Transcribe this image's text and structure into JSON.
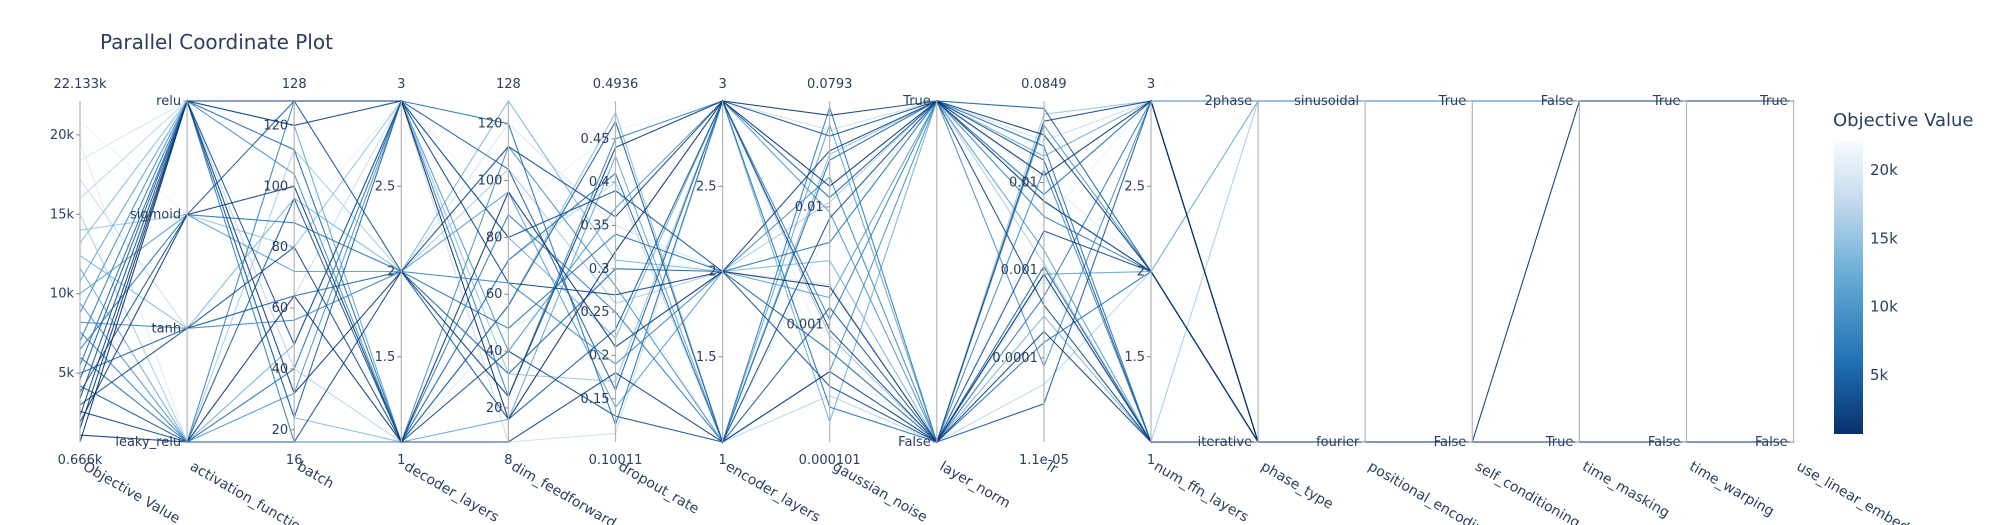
{
  "chart_data": {
    "type": "parallel_coordinates",
    "title": "Parallel Coordinate Plot",
    "colorbar": {
      "title": "Objective Value",
      "ticks": [
        "20k",
        "15k",
        "10k",
        "5k"
      ],
      "tick_values": [
        20000,
        15000,
        10000,
        5000
      ],
      "min": 666,
      "max": 22133,
      "colorscale": [
        "#08306b",
        "#2171b5",
        "#6baed6",
        "#c6dbef",
        "#f7fbff"
      ]
    },
    "axes": [
      {
        "key": "objective",
        "label": "Objective Value",
        "kind": "linear",
        "range": [
          666,
          22133
        ],
        "range_labels": [
          "22.133k",
          "0.666k"
        ],
        "ticks": [
          {
            "v": 5000,
            "t": "5k"
          },
          {
            "v": 10000,
            "t": "10k"
          },
          {
            "v": 15000,
            "t": "15k"
          },
          {
            "v": 20000,
            "t": "20k"
          }
        ]
      },
      {
        "key": "activation",
        "label": "activation_function",
        "kind": "categorical",
        "categories": [
          "leaky_relu",
          "tanh",
          "sigmoid",
          "relu"
        ]
      },
      {
        "key": "batch",
        "label": "batch",
        "kind": "linear",
        "range": [
          16,
          128
        ],
        "range_labels": [
          "128",
          "16"
        ],
        "ticks": [
          {
            "v": 20,
            "t": "20"
          },
          {
            "v": 40,
            "t": "40"
          },
          {
            "v": 60,
            "t": "60"
          },
          {
            "v": 80,
            "t": "80"
          },
          {
            "v": 100,
            "t": "100"
          },
          {
            "v": 120,
            "t": "120"
          }
        ]
      },
      {
        "key": "decoder_layers",
        "label": "decoder_layers",
        "kind": "linear",
        "range": [
          1,
          3
        ],
        "range_labels": [
          "3",
          "1"
        ],
        "ticks": [
          {
            "v": 1.5,
            "t": "1.5"
          },
          {
            "v": 2,
            "t": "2"
          },
          {
            "v": 2.5,
            "t": "2.5"
          }
        ]
      },
      {
        "key": "dim_feedforward",
        "label": "dim_feedforward",
        "kind": "linear",
        "range": [
          8,
          128
        ],
        "range_labels": [
          "128",
          "8"
        ],
        "ticks": [
          {
            "v": 20,
            "t": "20"
          },
          {
            "v": 40,
            "t": "40"
          },
          {
            "v": 60,
            "t": "60"
          },
          {
            "v": 80,
            "t": "80"
          },
          {
            "v": 100,
            "t": "100"
          },
          {
            "v": 120,
            "t": "120"
          }
        ]
      },
      {
        "key": "dropout_rate",
        "label": "dropout_rate",
        "kind": "linear",
        "range": [
          0.10011,
          0.4936
        ],
        "range_labels": [
          "0.4936",
          "0.10011"
        ],
        "ticks": [
          {
            "v": 0.15,
            "t": "0.15"
          },
          {
            "v": 0.2,
            "t": "0.2"
          },
          {
            "v": 0.25,
            "t": "0.25"
          },
          {
            "v": 0.3,
            "t": "0.3"
          },
          {
            "v": 0.35,
            "t": "0.35"
          },
          {
            "v": 0.4,
            "t": "0.4"
          },
          {
            "v": 0.45,
            "t": "0.45"
          }
        ]
      },
      {
        "key": "encoder_layers",
        "label": "encoder_layers",
        "kind": "linear",
        "range": [
          1,
          3
        ],
        "range_labels": [
          "3",
          "1"
        ],
        "ticks": [
          {
            "v": 1.5,
            "t": "1.5"
          },
          {
            "v": 2,
            "t": "2"
          },
          {
            "v": 2.5,
            "t": "2.5"
          }
        ]
      },
      {
        "key": "gaussian_noise",
        "label": "gaussian_noise",
        "kind": "log",
        "range": [
          0.000101,
          0.0793
        ],
        "range_labels": [
          "0.0793",
          "0.000101"
        ],
        "ticks": [
          {
            "v": 0.001,
            "t": "0.001"
          },
          {
            "v": 0.01,
            "t": "0.01"
          }
        ]
      },
      {
        "key": "layer_norm",
        "label": "layer_norm",
        "kind": "categorical",
        "categories": [
          "False",
          "True"
        ]
      },
      {
        "key": "lr",
        "label": "lr",
        "kind": "log",
        "range": [
          1.1e-05,
          0.0849
        ],
        "range_labels": [
          "0.0849",
          "1.1e-05"
        ],
        "ticks": [
          {
            "v": 0.0001,
            "t": "0.0001"
          },
          {
            "v": 0.001,
            "t": "0.001"
          },
          {
            "v": 0.01,
            "t": "0.01"
          }
        ]
      },
      {
        "key": "num_ffn_layers",
        "label": "num_ffn_layers",
        "kind": "linear",
        "range": [
          1,
          3
        ],
        "range_labels": [
          "3",
          "1"
        ],
        "ticks": [
          {
            "v": 1.5,
            "t": "1.5"
          },
          {
            "v": 2,
            "t": "2"
          },
          {
            "v": 2.5,
            "t": "2.5"
          }
        ]
      },
      {
        "key": "phase_type",
        "label": "phase_type",
        "kind": "categorical",
        "categories": [
          "iterative",
          "2phase"
        ]
      },
      {
        "key": "positional_encoding",
        "label": "positional_encoding",
        "kind": "categorical",
        "categories": [
          "fourier",
          "sinusoidal"
        ]
      },
      {
        "key": "self_conditioning",
        "label": "self_conditioning",
        "kind": "categorical",
        "categories": [
          "False",
          "True"
        ]
      },
      {
        "key": "time_masking",
        "label": "time_masking",
        "kind": "categorical",
        "categories": [
          "True",
          "False"
        ]
      },
      {
        "key": "time_warping",
        "label": "time_warping",
        "kind": "categorical",
        "categories": [
          "False",
          "True"
        ]
      },
      {
        "key": "use_linear_embedding",
        "label": "use_linear_embedding",
        "kind": "categorical",
        "categories": [
          "False",
          "True"
        ]
      }
    ],
    "trials": [
      [
        666,
        "relu",
        128,
        3,
        16,
        0.32,
        3,
        0.015,
        "True",
        0.012,
        3,
        "iterative",
        "fourier",
        "False",
        "False",
        "True",
        "True"
      ],
      [
        1100,
        "leaky_relu",
        64,
        1,
        96,
        0.21,
        2,
        0.0021,
        "False",
        0.0009,
        1,
        "iterative",
        "fourier",
        "False",
        "True",
        "False",
        "False"
      ],
      [
        1500,
        "relu",
        32,
        2,
        24,
        0.44,
        3,
        0.06,
        "True",
        0.035,
        2,
        "iterative",
        "fourier",
        "False",
        "True",
        "False",
        "False"
      ],
      [
        1900,
        "sigmoid",
        100,
        1,
        8,
        0.18,
        1,
        0.0004,
        "False",
        0.0002,
        1,
        "iterative",
        "fourier",
        "False",
        "True",
        "False",
        "False"
      ],
      [
        2300,
        "relu",
        120,
        3,
        64,
        0.27,
        2,
        0.03,
        "True",
        0.0061,
        2,
        "iterative",
        "fourier",
        "False",
        "True",
        "False",
        "False"
      ],
      [
        2600,
        "leaky_relu",
        16,
        2,
        112,
        0.36,
        3,
        0.0009,
        "False",
        0.05,
        3,
        "iterative",
        "fourier",
        "False",
        "True",
        "False",
        "False"
      ],
      [
        3000,
        "tanh",
        80,
        1,
        40,
        0.13,
        1,
        0.008,
        "True",
        0.0004,
        1,
        "iterative",
        "fourier",
        "False",
        "True",
        "False",
        "False"
      ],
      [
        3400,
        "relu",
        48,
        3,
        80,
        0.39,
        2,
        0.0003,
        "False",
        0.0028,
        2,
        "iterative",
        "fourier",
        "False",
        "True",
        "False",
        "False"
      ],
      [
        3800,
        "sigmoid",
        128,
        2,
        16,
        0.23,
        3,
        0.04,
        "True",
        0.018,
        1,
        "iterative",
        "fourier",
        "False",
        "True",
        "False",
        "False"
      ],
      [
        4200,
        "leaky_relu",
        96,
        1,
        56,
        0.47,
        1,
        0.0014,
        "False",
        3e-05,
        3,
        "iterative",
        "fourier",
        "False",
        "True",
        "False",
        "False"
      ],
      [
        4600,
        "relu",
        24,
        3,
        104,
        0.16,
        3,
        0.012,
        "True",
        0.07,
        2,
        "iterative",
        "fourier",
        "False",
        "True",
        "False",
        "False"
      ],
      [
        5000,
        "tanh",
        64,
        2,
        32,
        0.3,
        2,
        0.0006,
        "False",
        0.0011,
        1,
        "iterative",
        "fourier",
        "False",
        "True",
        "False",
        "False"
      ],
      [
        5500,
        "relu",
        112,
        1,
        72,
        0.41,
        1,
        0.025,
        "True",
        0.0073,
        3,
        "iterative",
        "fourier",
        "False",
        "True",
        "False",
        "False"
      ],
      [
        6000,
        "leaky_relu",
        40,
        3,
        120,
        0.12,
        3,
        0.0002,
        "False",
        0.00015,
        2,
        "iterative",
        "fourier",
        "False",
        "True",
        "False",
        "False"
      ],
      [
        6500,
        "sigmoid",
        88,
        2,
        48,
        0.34,
        2,
        0.005,
        "True",
        0.026,
        1,
        "iterative",
        "fourier",
        "False",
        "True",
        "False",
        "False"
      ],
      [
        7000,
        "relu",
        16,
        1,
        88,
        0.25,
        1,
        0.07,
        "False",
        0.0005,
        3,
        "2phase",
        "sinusoidal",
        "True",
        "False",
        "True",
        "True"
      ],
      [
        7600,
        "leaky_relu",
        128,
        3,
        24,
        0.45,
        3,
        0.0011,
        "True",
        0.0041,
        2,
        "iterative",
        "fourier",
        "False",
        "True",
        "False",
        "False"
      ],
      [
        8200,
        "tanh",
        56,
        2,
        64,
        0.19,
        2,
        0.018,
        "False",
        0.014,
        1,
        "iterative",
        "fourier",
        "False",
        "True",
        "False",
        "False"
      ],
      [
        8800,
        "relu",
        104,
        1,
        112,
        0.28,
        1,
        0.0004,
        "True",
        8e-05,
        3,
        "iterative",
        "fourier",
        "False",
        "True",
        "False",
        "False"
      ],
      [
        9400,
        "leaky_relu",
        32,
        3,
        40,
        0.37,
        3,
        0.009,
        "False",
        0.045,
        2,
        "iterative",
        "fourier",
        "False",
        "True",
        "False",
        "False"
      ],
      [
        10000,
        "sigmoid",
        72,
        2,
        96,
        0.14,
        2,
        0.0017,
        "True",
        0.0017,
        1,
        "iterative",
        "fourier",
        "False",
        "True",
        "False",
        "False"
      ],
      [
        10800,
        "relu",
        120,
        1,
        16,
        0.43,
        1,
        0.05,
        "False",
        0.0009,
        2,
        "2phase",
        "sinusoidal",
        "True",
        "False",
        "True",
        "True"
      ],
      [
        11600,
        "leaky_relu",
        48,
        3,
        80,
        0.22,
        3,
        0.00015,
        "True",
        0.02,
        3,
        "iterative",
        "fourier",
        "False",
        "True",
        "False",
        "False"
      ],
      [
        12400,
        "tanh",
        96,
        2,
        128,
        0.31,
        2,
        0.0035,
        "False",
        0.0003,
        1,
        "iterative",
        "fourier",
        "False",
        "True",
        "False",
        "False"
      ],
      [
        13200,
        "relu",
        24,
        1,
        56,
        0.48,
        1,
        0.028,
        "True",
        0.0062,
        2,
        "iterative",
        "fourier",
        "False",
        "True",
        "False",
        "False"
      ],
      [
        14000,
        "sigmoid",
        80,
        3,
        32,
        0.17,
        3,
        0.0008,
        "False",
        0.06,
        3,
        "iterative",
        "fourier",
        "False",
        "True",
        "False",
        "False"
      ],
      [
        15000,
        "leaky_relu",
        112,
        2,
        104,
        0.26,
        2,
        0.011,
        "True",
        0.0012,
        1,
        "2phase",
        "sinusoidal",
        "True",
        "False",
        "True",
        "True"
      ],
      [
        16000,
        "relu",
        40,
        1,
        72,
        0.4,
        1,
        0.00025,
        "False",
        5e-05,
        2,
        "iterative",
        "fourier",
        "False",
        "True",
        "False",
        "False"
      ],
      [
        17200,
        "tanh",
        64,
        3,
        8,
        0.11,
        3,
        0.045,
        "True",
        0.03,
        3,
        "iterative",
        "fourier",
        "False",
        "True",
        "False",
        "False"
      ],
      [
        18400,
        "relu",
        128,
        2,
        120,
        0.35,
        2,
        0.0022,
        "False",
        0.0008,
        1,
        "iterative",
        "fourier",
        "False",
        "True",
        "False",
        "False"
      ],
      [
        19600,
        "leaky_relu",
        16,
        1,
        48,
        0.29,
        1,
        0.0065,
        "True",
        0.011,
        2,
        "iterative",
        "fourier",
        "False",
        "True",
        "False",
        "False"
      ],
      [
        20800,
        "sigmoid",
        88,
        3,
        88,
        0.46,
        3,
        0.0005,
        "False",
        0.0035,
        3,
        "2phase",
        "sinusoidal",
        "True",
        "False",
        "True",
        "True"
      ],
      [
        22133,
        "relu",
        56,
        2,
        24,
        0.2,
        2,
        0.075,
        "True",
        0.0849,
        1,
        "iterative",
        "fourier",
        "False",
        "True",
        "False",
        "False"
      ]
    ]
  }
}
